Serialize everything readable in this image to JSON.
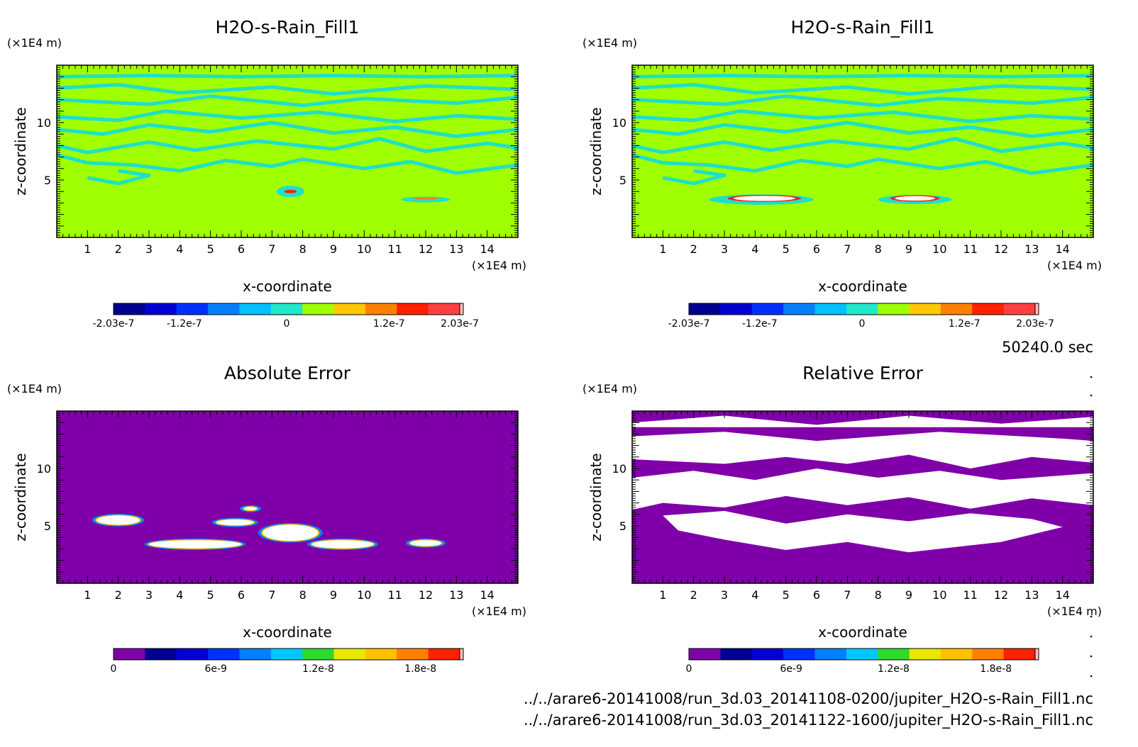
{
  "figure": {
    "time_label": "50240.0 sec",
    "file_lines": [
      "../../arare6-20141008/run_3d.03_20141108-0200/jupiter_H2O-s-Rain_Fill1.nc",
      "../../arare6-20141008/run_3d.03_20141122-1600/jupiter_H2O-s-Rain_Fill1.nc"
    ],
    "colors": {
      "background_green": "#a0ff00",
      "contour_cyan": "#20e0c8",
      "error_purple": "#7f00a8",
      "blob_white": "#ffffff"
    }
  },
  "chart_data": [
    {
      "type": "heatmap",
      "title": "H2O-s-Rain_Fill1",
      "xlabel": "x-coordinate",
      "ylabel": "z-coordinate",
      "x_unit": "(×1E4 m)",
      "y_unit": "(×1E4 m)",
      "xlim": [
        0,
        15
      ],
      "ylim": [
        0,
        15
      ],
      "xticks": [
        "1",
        "2",
        "3",
        "4",
        "5",
        "6",
        "7",
        "8",
        "9",
        "10",
        "11",
        "12",
        "13",
        "14"
      ],
      "yticks": [
        "5",
        "10"
      ],
      "colorbar": {
        "range": [
          -2.03e-07,
          2.03e-07
        ],
        "colors": [
          "#000090",
          "#0000d0",
          "#0030ff",
          "#0080ff",
          "#00c0ff",
          "#20e8c8",
          "#a0ff00",
          "#ffc800",
          "#ff8000",
          "#ff2000",
          "#ff4040"
        ],
        "tick_labels": [
          "-2.03e-7",
          "-1.2e-7",
          "0",
          "1.2e-7",
          "2.03e-7"
        ],
        "tick_values": [
          -2.03e-07,
          -1.2e-07,
          0,
          1.2e-07,
          2.03e-07
        ]
      },
      "field": "near-zero everywhere (green) with cyan contour bands at z = 5 to 14; small features near x = 7.5, z = 4 and x = 12, z = 3"
    },
    {
      "type": "heatmap",
      "title": "H2O-s-Rain_Fill1",
      "xlabel": "x-coordinate",
      "ylabel": "z-coordinate",
      "x_unit": "(×1E4 m)",
      "y_unit": "(×1E4 m)",
      "xlim": [
        0,
        15
      ],
      "ylim": [
        0,
        15
      ],
      "xticks": [
        "1",
        "2",
        "3",
        "4",
        "5",
        "6",
        "7",
        "8",
        "9",
        "10",
        "11",
        "12",
        "13",
        "14"
      ],
      "yticks": [
        "5",
        "10"
      ],
      "colorbar": {
        "range": [
          -2.03e-07,
          2.03e-07
        ],
        "colors": [
          "#000090",
          "#0000d0",
          "#0030ff",
          "#0080ff",
          "#00c0ff",
          "#20e8c8",
          "#a0ff00",
          "#ffc800",
          "#ff8000",
          "#ff2000",
          "#ff4040"
        ],
        "tick_labels": [
          "-2.03e-7",
          "-1.2e-7",
          "0",
          "1.2e-7",
          "2.03e-7"
        ],
        "tick_values": [
          -2.03e-07,
          -1.2e-07,
          0,
          1.2e-07,
          2.03e-07
        ]
      },
      "field": "near-zero (green) with cyan contour bands; white-cored features near x = 3-5, z = 3.3 and x = 8.5-10, z = 3.3"
    },
    {
      "type": "heatmap",
      "title": "Absolute Error",
      "xlabel": "x-coordinate",
      "ylabel": "z-coordinate",
      "x_unit": "(×1E4 m)",
      "y_unit": "(×1E4 m)",
      "xlim": [
        0,
        15
      ],
      "ylim": [
        0,
        15
      ],
      "xticks": [
        "1",
        "2",
        "3",
        "4",
        "5",
        "6",
        "7",
        "8",
        "9",
        "10",
        "11",
        "12",
        "13",
        "14"
      ],
      "yticks": [
        "5",
        "10"
      ],
      "colorbar": {
        "range": [
          0,
          2.03e-08
        ],
        "colors": [
          "#7f00a8",
          "#000090",
          "#0000d0",
          "#0030ff",
          "#0080ff",
          "#00c8ff",
          "#30d830",
          "#e8e800",
          "#ffc000",
          "#ff8000",
          "#ff2000"
        ],
        "tick_labels": [
          "0",
          "6e-9",
          "1.2e-8",
          "1.8e-8"
        ],
        "tick_values": [
          0,
          6e-09,
          1.2e-08,
          1.8e-08
        ]
      },
      "field": "zero (purple) everywhere except blobs near x = 1.5-2.5, z = 5.5; x = 3-6, z = 3.5; x = 7-10, z = 3.5-5; x = 11.5-12.5, z = 3.5"
    },
    {
      "type": "heatmap",
      "title": "Relative Error",
      "xlabel": "x-coordinate",
      "ylabel": "z-coordinate",
      "x_unit": "(×1E4 m)",
      "y_unit": "(×1E4 m)",
      "xlim": [
        0,
        15
      ],
      "ylim": [
        0,
        15
      ],
      "xticks": [
        "1",
        "2",
        "3",
        "4",
        "5",
        "6",
        "7",
        "8",
        "9",
        "10",
        "11",
        "12",
        "13",
        "14"
      ],
      "yticks": [
        "5",
        "10"
      ],
      "colorbar": {
        "range": [
          0,
          2.03e-08
        ],
        "colors": [
          "#7f00a8",
          "#000090",
          "#0000d0",
          "#0030ff",
          "#0080ff",
          "#00c8ff",
          "#30d830",
          "#e8e800",
          "#ffc000",
          "#ff8000",
          "#ff2000"
        ],
        "tick_labels": [
          "0",
          "6e-9",
          "1.2e-8",
          "1.8e-8"
        ],
        "tick_values": [
          0,
          6e-09,
          1.2e-08,
          1.8e-08
        ]
      },
      "field": "purple bottom layer below z ~ 3 and scattered purple bands; large white (undefined) regions between z = 3 and z = 14"
    }
  ]
}
